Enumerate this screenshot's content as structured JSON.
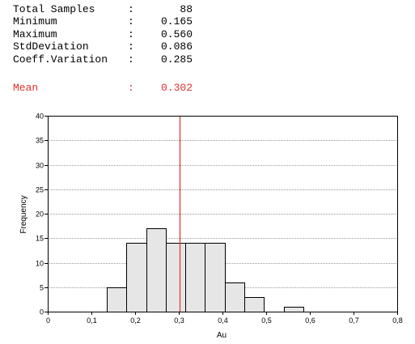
{
  "stats": [
    {
      "label": "Total Samples",
      "value": "88"
    },
    {
      "label": "Minimum",
      "value": "0.165"
    },
    {
      "label": "Maximum",
      "value": "0.560"
    },
    {
      "label": "StdDeviation",
      "value": "0.086"
    },
    {
      "label": "Coeff.Variation",
      "value": "0.285"
    }
  ],
  "mean": {
    "label": "Mean",
    "value": "0.302"
  },
  "colon": ":",
  "colors": {
    "mean": "#e03030",
    "bar_fill": "#e6e6e6",
    "bar_stroke": "#000000",
    "grid": "#9a9a9a"
  },
  "chart_data": {
    "type": "bar",
    "xlabel": "Au",
    "ylabel": "Frequency",
    "xlim": [
      0,
      0.8
    ],
    "ylim": [
      0,
      40
    ],
    "x_ticks": [
      "0",
      "0,1",
      "0,2",
      "0,3",
      "0,4",
      "0,5",
      "0,6",
      "0,7",
      "0,8"
    ],
    "y_ticks": [
      "0",
      "5",
      "10",
      "15",
      "20",
      "25",
      "30",
      "35",
      "40"
    ],
    "grid": "horizontal dotted",
    "bins": [
      {
        "start": 0.135,
        "end": 0.18,
        "count": 5
      },
      {
        "start": 0.18,
        "end": 0.225,
        "count": 14
      },
      {
        "start": 0.225,
        "end": 0.27,
        "count": 17
      },
      {
        "start": 0.27,
        "end": 0.315,
        "count": 14
      },
      {
        "start": 0.315,
        "end": 0.36,
        "count": 14
      },
      {
        "start": 0.36,
        "end": 0.405,
        "count": 14
      },
      {
        "start": 0.405,
        "end": 0.45,
        "count": 6
      },
      {
        "start": 0.45,
        "end": 0.495,
        "count": 3
      },
      {
        "start": 0.54,
        "end": 0.585,
        "count": 1
      }
    ],
    "mean_line": 0.302
  }
}
